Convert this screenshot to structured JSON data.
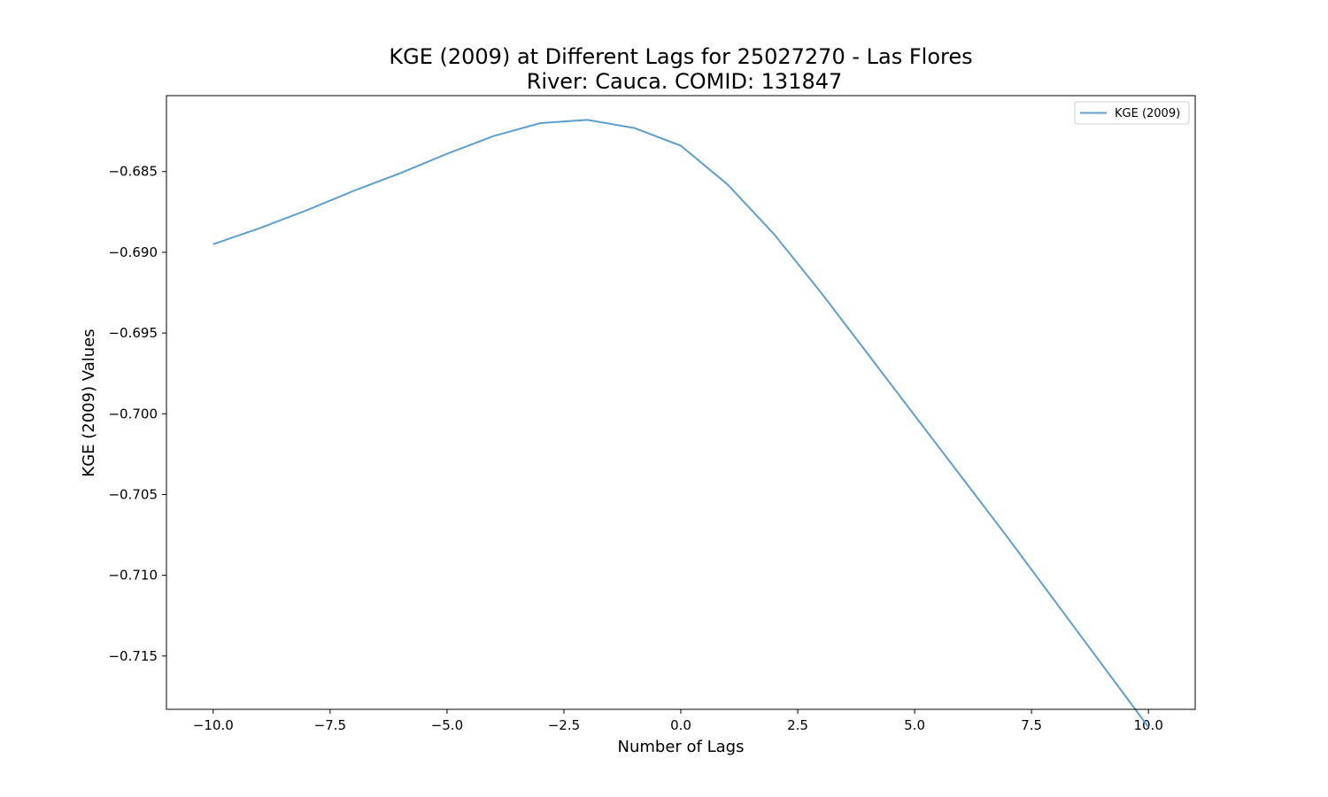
{
  "chart_data": {
    "type": "line",
    "title_line1": "KGE (2009) at Different Lags for 25027270 - Las Flores",
    "title_line2": "River: Cauca. COMID: 131847",
    "xlabel": "Number of Lags",
    "ylabel": "KGE (2009) Values",
    "xlim": [
      -11,
      11
    ],
    "ylim": [
      -0.7183,
      -0.6803
    ],
    "x_ticks": [
      -10.0,
      -7.5,
      -5.0,
      -2.5,
      0.0,
      2.5,
      5.0,
      7.5,
      10.0
    ],
    "x_tick_labels": [
      "−10.0",
      "−7.5",
      "−5.0",
      "−2.5",
      "0.0",
      "2.5",
      "5.0",
      "7.5",
      "10.0"
    ],
    "y_ticks": [
      -0.685,
      -0.69,
      -0.695,
      -0.7,
      -0.705,
      -0.71,
      -0.715
    ],
    "y_tick_labels": [
      "−0.685",
      "−0.690",
      "−0.695",
      "−0.700",
      "−0.705",
      "−0.710",
      "−0.715"
    ],
    "grid": false,
    "legend_position": "top-right",
    "series": [
      {
        "name": "KGE (2009)",
        "color": "#5d9fcd",
        "x": [
          -10,
          -9,
          -8,
          -7,
          -6,
          -5,
          -4,
          -3,
          -2,
          -1,
          0,
          1,
          2,
          3,
          4,
          5,
          6,
          7,
          8,
          9,
          10
        ],
        "y": [
          -0.6895,
          -0.6885,
          -0.6874,
          -0.6862,
          -0.6851,
          -0.6839,
          -0.6828,
          -0.682,
          -0.6818,
          -0.6823,
          -0.6834,
          -0.6858,
          -0.6889,
          -0.6925,
          -0.6963,
          -0.7001,
          -0.7039,
          -0.7077,
          -0.7116,
          -0.7155,
          -0.7194
        ]
      }
    ]
  }
}
